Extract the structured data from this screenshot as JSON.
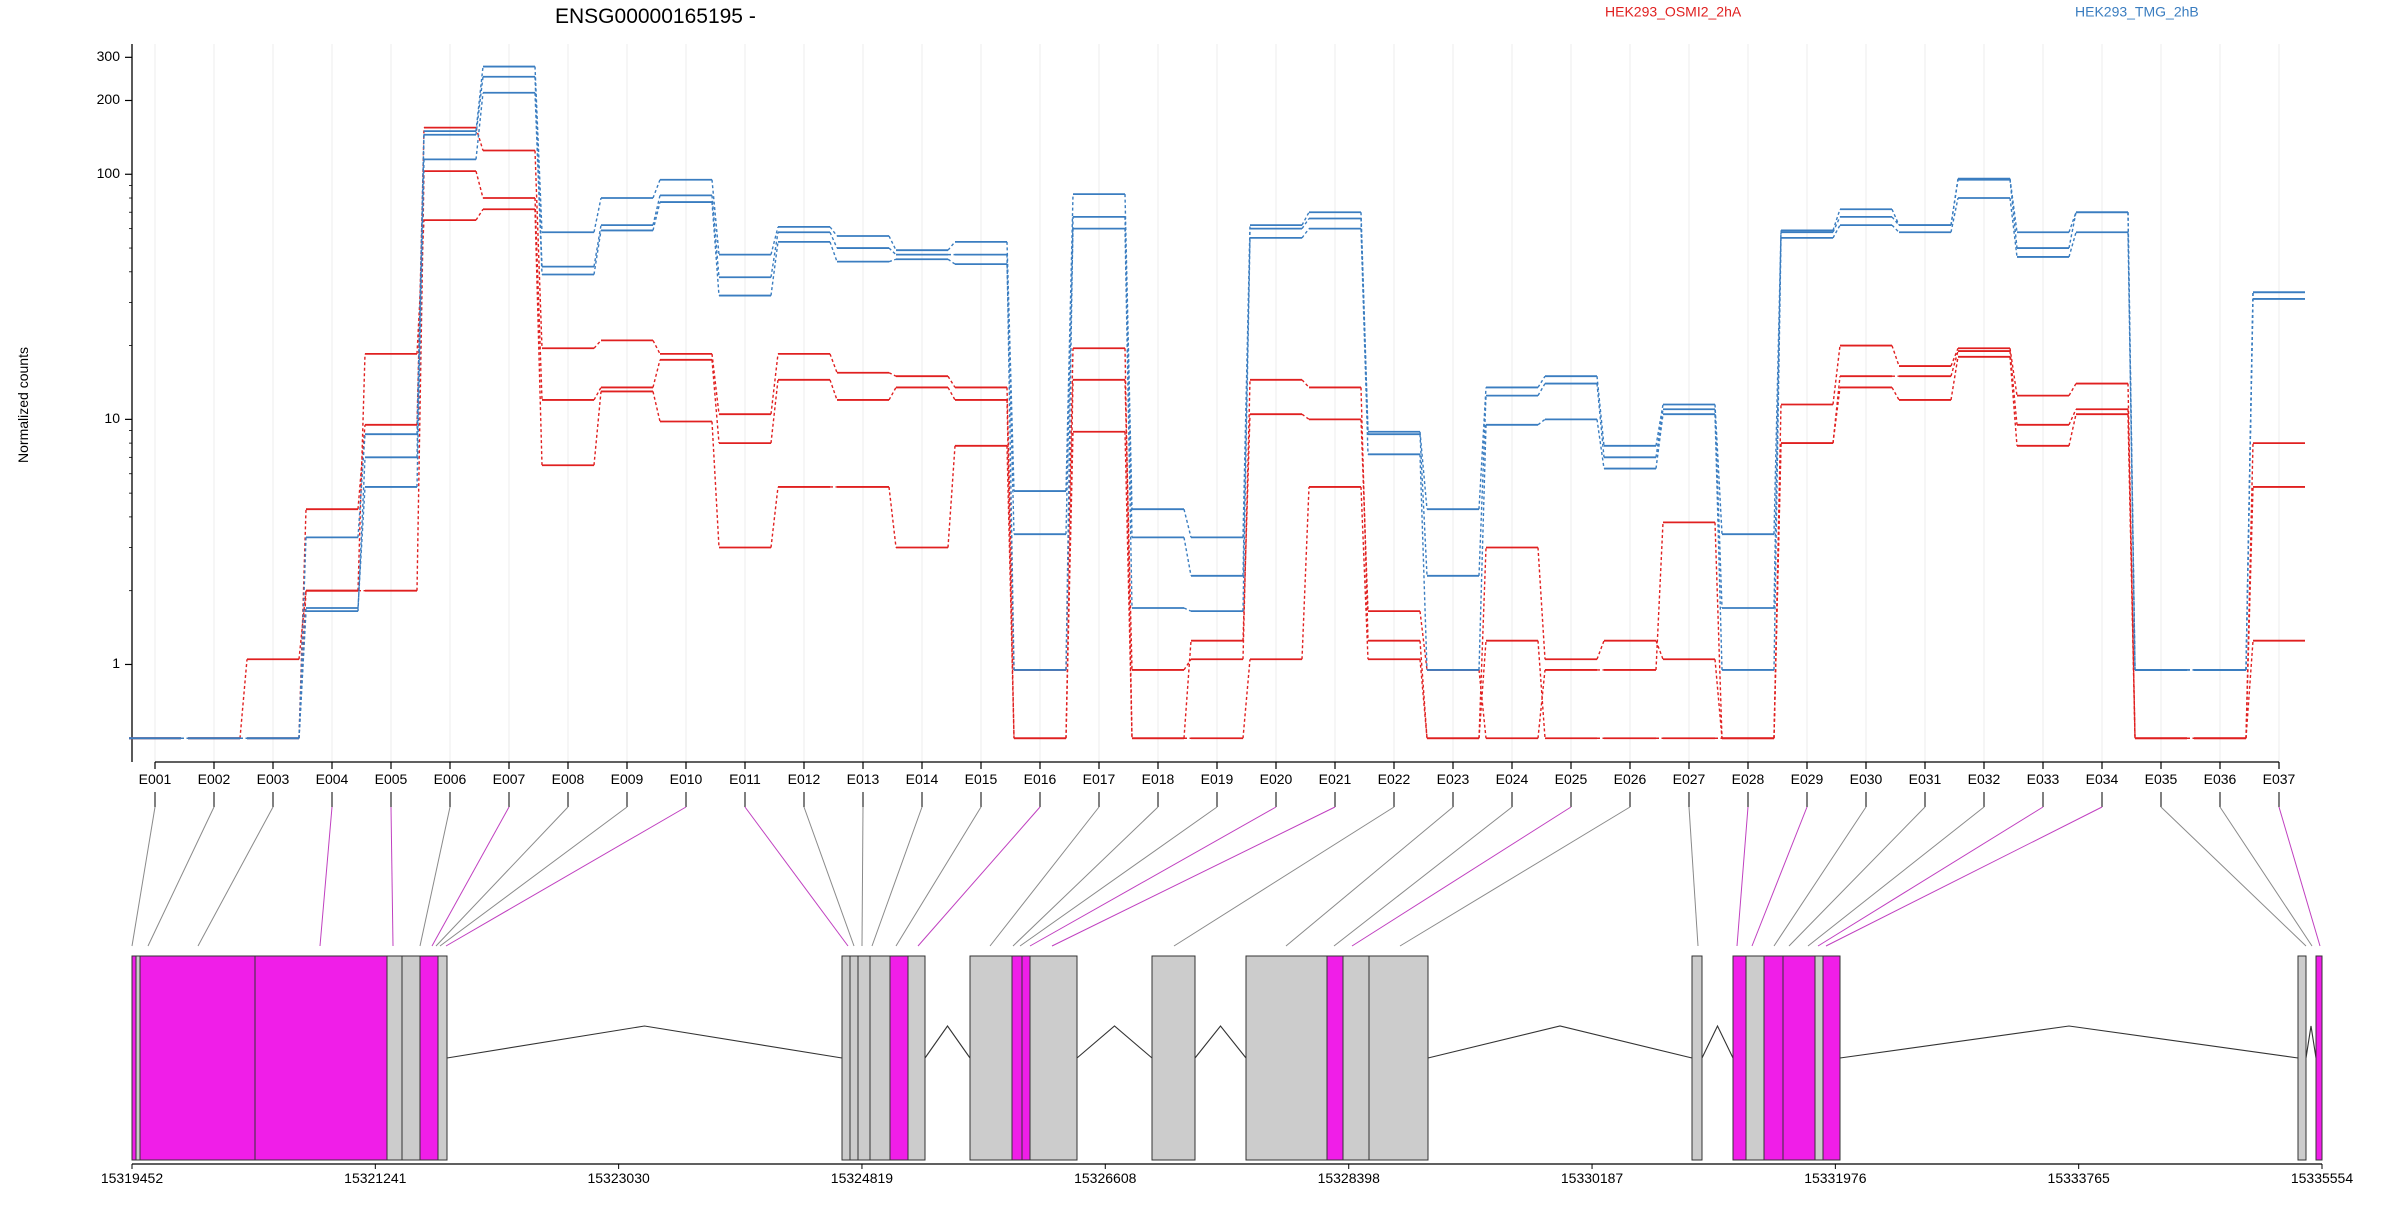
{
  "title": "ENSG00000165195 -",
  "legend": [
    {
      "name": "HEK293_OSMI2_2hA",
      "color": "#e02020"
    },
    {
      "name": "HEK293_TMG_2hB",
      "color": "#3a7dc0"
    }
  ],
  "ylabel": "Normalized counts",
  "colors": {
    "osmi": "#e02020",
    "tmg": "#3a7dc0",
    "highlight": "#f01ee8",
    "exon_gray": "#cccccc",
    "grid": "#ececec"
  },
  "chart_data": {
    "type": "line",
    "title": "ENSG00000165195 -",
    "ylabel": "Normalized counts",
    "y_scale": "log",
    "ylim": [
      0.4,
      340
    ],
    "y_ticks": [
      1,
      10,
      100,
      200,
      300
    ],
    "floor_value": 0.5,
    "categories": [
      "E001",
      "E002",
      "E003",
      "E004",
      "E005",
      "E006",
      "E007",
      "E008",
      "E009",
      "E010",
      "E011",
      "E012",
      "E013",
      "E014",
      "E015",
      "E016",
      "E017",
      "E018",
      "E019",
      "E020",
      "E021",
      "E022",
      "E023",
      "E024",
      "E025",
      "E026",
      "E027",
      "E028",
      "E029",
      "E030",
      "E031",
      "E032",
      "E033",
      "E034",
      "E035",
      "E036",
      "E037"
    ],
    "highlighted_exons": [
      "E004",
      "E005",
      "E007",
      "E010",
      "E011",
      "E016",
      "E020",
      "E021",
      "E025",
      "E028",
      "E029",
      "E033",
      "E034",
      "E037"
    ],
    "series": [
      {
        "name": "HEK293_OSMI2_2hA",
        "color": "#e02020",
        "values": [
          0.5,
          0.5,
          1.05,
          2.0,
          18.5,
          65,
          72,
          6.5,
          13,
          9.8,
          3.0,
          5.3,
          5.3,
          3.0,
          7.8,
          0.5,
          8.9,
          0.5,
          0.5,
          1.05,
          5.3,
          1.05,
          0.5,
          1.25,
          0.5,
          0.5,
          0.5,
          0.5,
          8.0,
          13.5,
          12,
          18,
          7.8,
          10.5,
          0.5,
          0.5,
          5.3
        ]
      },
      {
        "name": "HEK293_OSMI2_2hA",
        "color": "#e02020",
        "values": [
          0.5,
          0.5,
          0.5,
          2.0,
          2.0,
          103,
          80,
          12,
          13.5,
          17.5,
          8.0,
          14.5,
          12,
          13.5,
          12,
          0.5,
          14.5,
          0.95,
          1.05,
          14.5,
          13.5,
          1.25,
          0.5,
          3.0,
          1.05,
          1.25,
          1.05,
          0.5,
          8.0,
          15,
          15,
          19,
          9.5,
          11,
          0.5,
          0.5,
          1.25
        ]
      },
      {
        "name": "HEK293_OSMI2_2hA",
        "color": "#e02020",
        "values": [
          0.5,
          0.5,
          0.5,
          4.3,
          9.5,
          155,
          125,
          19.5,
          21,
          18.5,
          10.5,
          18.5,
          15.5,
          15,
          13.5,
          0.95,
          19.5,
          0.5,
          1.25,
          10.5,
          10,
          1.65,
          0.95,
          0.5,
          0.95,
          0.95,
          3.8,
          0.5,
          11.5,
          20,
          16.5,
          19.5,
          12.5,
          14,
          0.5,
          0.5,
          8.0
        ]
      },
      {
        "name": "HEK293_TMG_2hB",
        "color": "#3a7dc0",
        "values": [
          0.5,
          0.5,
          0.5,
          1.7,
          5.3,
          115,
          215,
          39,
          59,
          77,
          32,
          53,
          44,
          45,
          43,
          3.4,
          60,
          1.7,
          1.65,
          55,
          60,
          7.2,
          0.95,
          9.5,
          10,
          6.3,
          10.5,
          0.95,
          55,
          62,
          58,
          80,
          46,
          58,
          0.95,
          0.95,
          31
        ]
      },
      {
        "name": "HEK293_TMG_2hB",
        "color": "#3a7dc0",
        "values": [
          0.5,
          0.5,
          0.5,
          1.65,
          7.0,
          145,
          250,
          42,
          62,
          82,
          38,
          58,
          50,
          47,
          47,
          0.95,
          67,
          3.3,
          2.3,
          60,
          66,
          8.7,
          2.3,
          12.5,
          14,
          7.0,
          11,
          1.7,
          58,
          67,
          62,
          95,
          50,
          70,
          0.95,
          0.95,
          33
        ]
      },
      {
        "name": "HEK293_TMG_2hB",
        "color": "#3a7dc0",
        "values": [
          0.5,
          0.5,
          0.5,
          3.3,
          8.7,
          150,
          275,
          58,
          80,
          95,
          47,
          61,
          56,
          49,
          53,
          5.1,
          83,
          4.3,
          3.3,
          62,
          70,
          8.9,
          4.3,
          13.5,
          15,
          7.8,
          11.5,
          3.4,
          59,
          72,
          62,
          96,
          58,
          70,
          0.95,
          0.95,
          33
        ]
      }
    ]
  },
  "gene_model": {
    "coord_ticks": [
      "15319452",
      "15321241",
      "15323030",
      "15324819",
      "15326608",
      "15328398",
      "15330187",
      "15331976",
      "15333765",
      "15335554"
    ],
    "coord_range": [
      15319452,
      15335554
    ],
    "mapped_exons": [
      "E001",
      "E002",
      "E003",
      "E004",
      "E005",
      "E006",
      "E007",
      "E008",
      "E009",
      "E010",
      "E011",
      "E012",
      "E013",
      "E014",
      "E015",
      "E016",
      "E017",
      "E018",
      "E019",
      "E020",
      "E021",
      "E022",
      "E023",
      "E024",
      "E025",
      "E026",
      "E027",
      "E028",
      "E029",
      "E030",
      "E031",
      "E032",
      "E033",
      "E034",
      "E035",
      "E036",
      "E037"
    ]
  }
}
